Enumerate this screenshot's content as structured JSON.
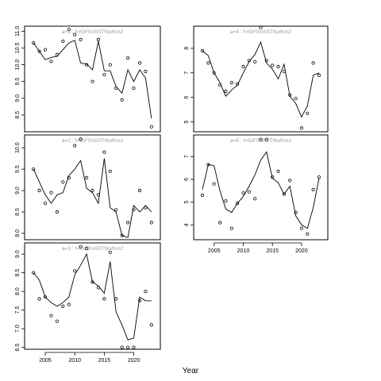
{
  "chart_data": {
    "xlabel": "Year",
    "panels": [
      {
        "type": "scatter",
        "title": "a=1 : f=IGFSVASTNo/Km2",
        "xlim": [
          2001.5,
          2024.5
        ],
        "ylim": [
          8.0,
          11.15
        ],
        "yticks": [
          8.5,
          9.0,
          9.5,
          10.0,
          10.5,
          11.0
        ],
        "xticks": [],
        "x": [
          2003,
          2004,
          2005,
          2006,
          2007,
          2008,
          2009,
          2010,
          2011,
          2012,
          2013,
          2014,
          2015,
          2016,
          2017,
          2018,
          2019,
          2020,
          2021,
          2022,
          2023
        ],
        "points": [
          10.65,
          10.4,
          10.45,
          10.1,
          10.3,
          10.7,
          11.05,
          10.9,
          10.75,
          10.0,
          9.5,
          10.75,
          9.7,
          10.0,
          9.3,
          8.95,
          10.2,
          9.3,
          10.05,
          9.8,
          8.15
        ],
        "fit": [
          10.65,
          10.4,
          10.15,
          10.22,
          10.25,
          10.45,
          10.65,
          10.73,
          10.05,
          10.02,
          9.85,
          10.7,
          9.82,
          9.82,
          9.35,
          9.15,
          9.85,
          9.5,
          9.85,
          9.6,
          8.4
        ]
      },
      {
        "type": "scatter",
        "title": "a=2 : f=IGFSVASTNo/Km2",
        "xlim": [
          2001.5,
          2024.5
        ],
        "ylim": [
          7.85,
          10.3
        ],
        "yticks": [
          8.0,
          8.5,
          9.0,
          9.5,
          10.0
        ],
        "xticks": [],
        "x": [
          2003,
          2004,
          2005,
          2006,
          2007,
          2008,
          2009,
          2010,
          2011,
          2012,
          2013,
          2014,
          2015,
          2016,
          2017,
          2018,
          2019,
          2020,
          2021,
          2022,
          2023
        ],
        "points": [
          9.5,
          9.0,
          8.7,
          8.95,
          8.5,
          9.2,
          9.3,
          10.05,
          10.2,
          9.3,
          9.0,
          8.9,
          9.9,
          9.45,
          8.55,
          7.95,
          8.25,
          8.55,
          9.0,
          8.6,
          8.25
        ],
        "fit": [
          9.5,
          9.2,
          8.9,
          8.7,
          8.9,
          8.95,
          9.35,
          9.5,
          9.7,
          9.05,
          8.95,
          8.7,
          9.75,
          8.6,
          8.5,
          7.95,
          7.9,
          8.65,
          8.5,
          8.65,
          8.5
        ]
      },
      {
        "type": "scatter",
        "title": "a=3 : f=IGFSVASTNo/Km2",
        "xlim": [
          2001.5,
          2024.5
        ],
        "ylim": [
          6.45,
          9.3
        ],
        "yticks": [
          6.5,
          7.0,
          7.5,
          8.0,
          8.5,
          9.0
        ],
        "xticks": [
          2005,
          2010,
          2015,
          2020
        ],
        "x": [
          2003,
          2004,
          2005,
          2006,
          2007,
          2008,
          2009,
          2010,
          2011,
          2012,
          2013,
          2014,
          2015,
          2016,
          2017,
          2018,
          2019,
          2020,
          2021,
          2022,
          2023
        ],
        "points": [
          8.5,
          7.8,
          7.85,
          7.35,
          7.2,
          7.6,
          7.65,
          8.55,
          9.2,
          9.15,
          8.25,
          8.1,
          7.8,
          9.05,
          7.8,
          6.5,
          6.5,
          6.5,
          7.75,
          8.0,
          7.1
        ],
        "fit": [
          8.5,
          8.3,
          7.85,
          7.7,
          7.6,
          7.7,
          7.85,
          8.45,
          8.7,
          9.0,
          8.25,
          8.15,
          7.95,
          8.8,
          7.45,
          7.1,
          6.7,
          6.75,
          7.85,
          7.75,
          7.75
        ]
      },
      {
        "type": "scatter",
        "title": "a=4 : f=IGFSVASTNo/Km2",
        "xlim": [
          2001.5,
          2024.5
        ],
        "ylim": [
          4.6,
          8.9
        ],
        "yticks": [
          5,
          6,
          7,
          8
        ],
        "xticks": [],
        "x": [
          2003,
          2004,
          2005,
          2006,
          2007,
          2008,
          2009,
          2010,
          2011,
          2012,
          2013,
          2014,
          2015,
          2016,
          2017,
          2018,
          2019,
          2020,
          2021,
          2022,
          2023
        ],
        "points": [
          7.9,
          7.4,
          7.0,
          6.5,
          6.25,
          6.6,
          6.55,
          7.25,
          7.5,
          7.45,
          8.85,
          7.5,
          7.3,
          7.25,
          7.05,
          6.1,
          5.95,
          4.75,
          5.35,
          7.4,
          6.9
        ],
        "fit": [
          7.9,
          7.7,
          7.0,
          6.6,
          6.05,
          6.3,
          6.5,
          7.0,
          7.45,
          7.75,
          8.25,
          7.4,
          7.15,
          6.75,
          7.35,
          6.05,
          5.75,
          5.2,
          5.65,
          6.9,
          7.0
        ]
      },
      {
        "type": "scatter",
        "title": "a=5 : f=IGFSVASTNo/Km2",
        "xlim": [
          2001.5,
          2024.5
        ],
        "ylim": [
          3.35,
          7.95
        ],
        "yticks": [
          4,
          5,
          6,
          7
        ],
        "xticks": [
          2005,
          2010,
          2015,
          2020
        ],
        "x": [
          2003,
          2004,
          2005,
          2006,
          2007,
          2008,
          2009,
          2010,
          2011,
          2012,
          2013,
          2014,
          2015,
          2016,
          2017,
          2018,
          2019,
          2020,
          2021,
          2022,
          2023
        ],
        "points": [
          5.3,
          6.65,
          5.8,
          4.1,
          5.05,
          3.85,
          4.95,
          5.4,
          5.45,
          5.15,
          7.75,
          7.75,
          6.1,
          6.35,
          5.35,
          5.95,
          4.55,
          3.85,
          3.6,
          5.55,
          6.1
        ],
        "fit": [
          5.55,
          6.65,
          6.6,
          5.5,
          4.7,
          4.55,
          4.95,
          5.25,
          5.7,
          6.2,
          6.85,
          7.2,
          6.05,
          5.85,
          5.35,
          5.7,
          4.4,
          4.0,
          3.85,
          4.75,
          6.05
        ]
      }
    ]
  }
}
